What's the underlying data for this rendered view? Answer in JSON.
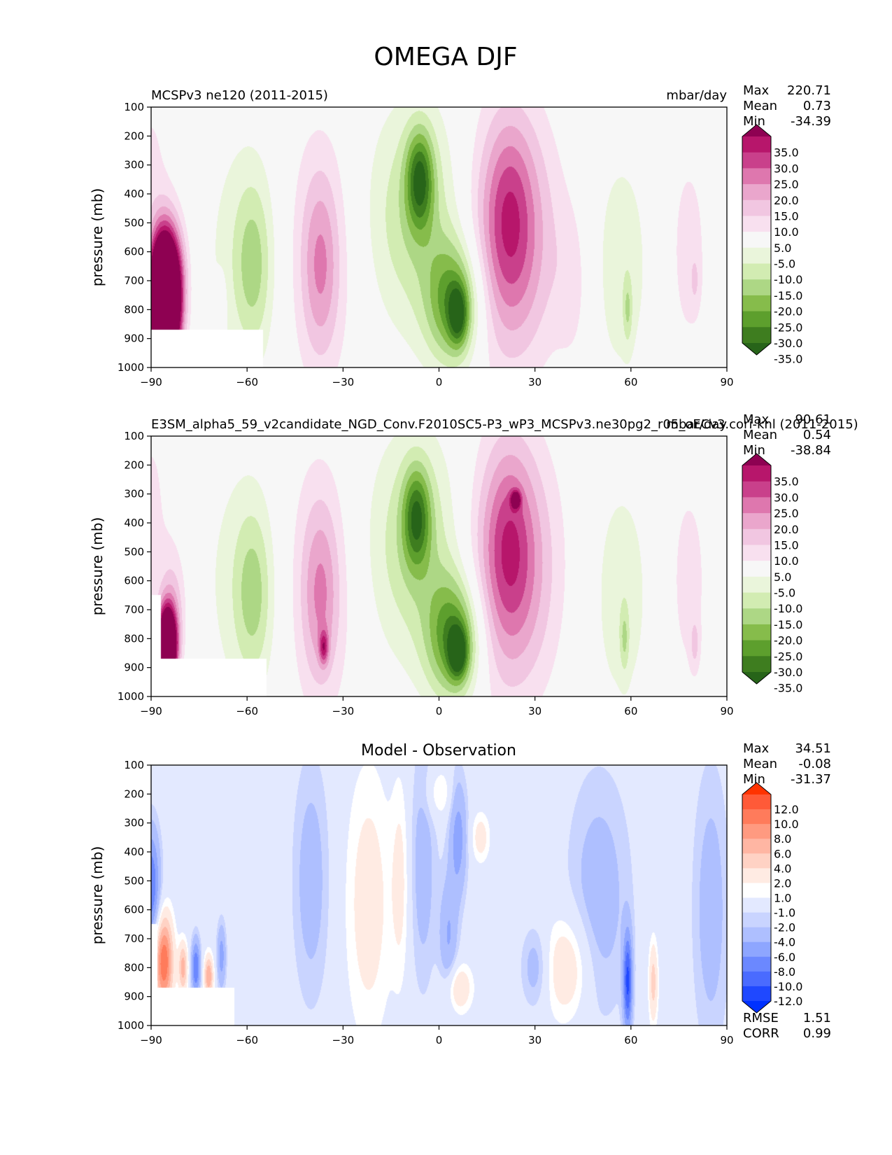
{
  "figure": {
    "title": "OMEGA DJF"
  },
  "chart_data": [
    {
      "type": "heatmap",
      "id": "test",
      "title": "",
      "left_label": "MCSPv3 ne120 (2011-2015)",
      "units": "mbar/day",
      "ylabel": "pressure (mb)",
      "xlabel": "",
      "x_ticks": [
        -90,
        -60,
        -30,
        0,
        30,
        60,
        90
      ],
      "y_ticks": [
        100,
        200,
        300,
        400,
        500,
        600,
        700,
        800,
        900,
        1000
      ],
      "xlim": [
        -90,
        90
      ],
      "ylim": [
        1000,
        100
      ],
      "stats": {
        "labels": [
          "Max",
          "Mean",
          "Min"
        ],
        "values": [
          "220.71",
          "0.73",
          "-34.39"
        ]
      },
      "colorbar": {
        "labels": [
          "35.0",
          "30.0",
          "25.0",
          "20.0",
          "15.0",
          "10.0",
          "5.0",
          "-5.0",
          "-10.0",
          "-15.0",
          "-20.0",
          "-25.0",
          "-30.0",
          "-35.0"
        ],
        "colors": [
          "#8e0152",
          "#b7166b",
          "#c9408b",
          "#de77ae",
          "#eaa6cc",
          "#f1c6e1",
          "#f8e0ef",
          "#f7f7f7",
          "#eaf5db",
          "#d2ecb2",
          "#add785",
          "#86bc4b",
          "#5d9f2d",
          "#3e7d1f",
          "#276419"
        ]
      },
      "features": [
        {
          "x": -86,
          "p": 780,
          "w": 3,
          "h": 150,
          "v": 120
        },
        {
          "x": -82,
          "p": 700,
          "w": 3,
          "h": 150,
          "v": 15
        },
        {
          "x": -90,
          "p": 350,
          "w": 5,
          "h": 300,
          "v": 6
        },
        {
          "x": -68,
          "p": 770,
          "w": 1,
          "h": 60,
          "v": 8
        },
        {
          "x": -60,
          "p": 600,
          "w": 10,
          "h": 320,
          "v": -8
        },
        {
          "x": -58,
          "p": 650,
          "w": 4,
          "h": 200,
          "v": -12
        },
        {
          "x": -38,
          "p": 600,
          "w": 10,
          "h": 340,
          "v": 9
        },
        {
          "x": -37,
          "p": 650,
          "w": 4,
          "h": 220,
          "v": 14
        },
        {
          "x": -7,
          "p": 480,
          "w": 12,
          "h": 280,
          "v": -15
        },
        {
          "x": -6,
          "p": 350,
          "w": 3,
          "h": 120,
          "v": -27
        },
        {
          "x": 5,
          "p": 780,
          "w": 6,
          "h": 150,
          "v": -28
        },
        {
          "x": 6,
          "p": 820,
          "w": 2,
          "h": 70,
          "v": -20
        },
        {
          "x": 22,
          "p": 550,
          "w": 10,
          "h": 310,
          "v": 24
        },
        {
          "x": 22,
          "p": 450,
          "w": 5,
          "h": 220,
          "v": 10
        },
        {
          "x": 42,
          "p": 720,
          "w": 4,
          "h": 200,
          "v": 6
        },
        {
          "x": 57,
          "p": 650,
          "w": 7,
          "h": 320,
          "v": -8
        },
        {
          "x": 59,
          "p": 800,
          "w": 1,
          "h": 80,
          "v": -10
        },
        {
          "x": 78,
          "p": 600,
          "w": 5,
          "h": 300,
          "v": 7
        },
        {
          "x": 80,
          "p": 700,
          "w": 1,
          "h": 60,
          "v": 6
        }
      ],
      "mask": [
        [
          -90,
          870,
          -55,
          1000
        ]
      ]
    },
    {
      "type": "heatmap",
      "id": "ref",
      "title": "",
      "left_label": "E3SM_alpha5_59_v2candidate_NGD_Conv.F2010SC5-P3_wP3_MCSPv3.ne30pg2_r05_oECv3.cori-knl (2011-2015)",
      "units": "mbar/day",
      "ylabel": "pressure (mb)",
      "xlabel": "",
      "x_ticks": [
        -90,
        -60,
        -30,
        0,
        30,
        60,
        90
      ],
      "y_ticks": [
        100,
        200,
        300,
        400,
        500,
        600,
        700,
        800,
        900,
        1000
      ],
      "xlim": [
        -90,
        90
      ],
      "ylim": [
        1000,
        100
      ],
      "stats": {
        "labels": [
          "Max",
          "Mean",
          "Min"
        ],
        "values": [
          "90.61",
          "0.54",
          "-38.84"
        ]
      },
      "colorbar": {
        "labels": [
          "35.0",
          "30.0",
          "25.0",
          "20.0",
          "15.0",
          "10.0",
          "5.0",
          "-5.0",
          "-10.0",
          "-15.0",
          "-20.0",
          "-25.0",
          "-30.0",
          "-35.0"
        ],
        "colors": [
          "#8e0152",
          "#b7166b",
          "#c9408b",
          "#de77ae",
          "#eaa6cc",
          "#f1c6e1",
          "#f8e0ef",
          "#f7f7f7",
          "#eaf5db",
          "#d2ecb2",
          "#add785",
          "#86bc4b",
          "#5d9f2d",
          "#3e7d1f",
          "#276419"
        ]
      },
      "features": [
        {
          "x": -85,
          "p": 830,
          "w": 2,
          "h": 90,
          "v": 80
        },
        {
          "x": -83,
          "p": 700,
          "w": 3,
          "h": 150,
          "v": 12
        },
        {
          "x": -90,
          "p": 350,
          "w": 5,
          "h": 300,
          "v": 6
        },
        {
          "x": -60,
          "p": 600,
          "w": 10,
          "h": 320,
          "v": -8
        },
        {
          "x": -58,
          "p": 650,
          "w": 4,
          "h": 200,
          "v": -12
        },
        {
          "x": -38,
          "p": 600,
          "w": 10,
          "h": 340,
          "v": 9
        },
        {
          "x": -37,
          "p": 650,
          "w": 4,
          "h": 220,
          "v": 14
        },
        {
          "x": -36,
          "p": 830,
          "w": 1,
          "h": 40,
          "v": 20
        },
        {
          "x": -7,
          "p": 480,
          "w": 12,
          "h": 280,
          "v": -15
        },
        {
          "x": -7,
          "p": 380,
          "w": 3,
          "h": 120,
          "v": -25
        },
        {
          "x": 5,
          "p": 800,
          "w": 6,
          "h": 150,
          "v": -30
        },
        {
          "x": 6,
          "p": 850,
          "w": 2,
          "h": 60,
          "v": -25
        },
        {
          "x": 22,
          "p": 550,
          "w": 10,
          "h": 310,
          "v": 24
        },
        {
          "x": 22,
          "p": 450,
          "w": 5,
          "h": 220,
          "v": 10
        },
        {
          "x": 24,
          "p": 320,
          "w": 1,
          "h": 20,
          "v": 30
        },
        {
          "x": 57,
          "p": 650,
          "w": 7,
          "h": 320,
          "v": -8
        },
        {
          "x": 58,
          "p": 800,
          "w": 1,
          "h": 80,
          "v": -10
        },
        {
          "x": 78,
          "p": 600,
          "w": 5,
          "h": 300,
          "v": 7
        },
        {
          "x": 80,
          "p": 820,
          "w": 1,
          "h": 60,
          "v": 8
        }
      ],
      "mask": [
        [
          -90,
          870,
          -54,
          1000
        ],
        [
          -90,
          650,
          -87,
          870
        ]
      ]
    },
    {
      "type": "heatmap",
      "id": "diff",
      "title": "Model - Observation",
      "left_label": "",
      "units": "",
      "ylabel": "pressure (mb)",
      "xlabel": "",
      "x_ticks": [
        -90,
        -60,
        -30,
        0,
        30,
        60,
        90
      ],
      "y_ticks": [
        100,
        200,
        300,
        400,
        500,
        600,
        700,
        800,
        900,
        1000
      ],
      "xlim": [
        -90,
        90
      ],
      "ylim": [
        1000,
        100
      ],
      "stats": {
        "labels": [
          "Max",
          "Mean",
          "Min"
        ],
        "values": [
          "34.51",
          "-0.08",
          "-31.37"
        ]
      },
      "extra_stats": {
        "labels": [
          "RMSE",
          "CORR"
        ],
        "values": [
          "1.51",
          "0.99"
        ]
      },
      "colorbar": {
        "labels": [
          "12.0",
          "10.0",
          "8.0",
          "6.0",
          "4.0",
          "2.0",
          "1.0",
          "-1.0",
          "-2.0",
          "-4.0",
          "-6.0",
          "-8.0",
          "-10.0",
          "-12.0"
        ],
        "colors": [
          "#ff3300",
          "#ff5a38",
          "#ff7b5b",
          "#ff9a80",
          "#ffb6a3",
          "#ffd2c4",
          "#ffebe3",
          "#ffffff",
          "#e3e9ff",
          "#c9d4ff",
          "#aebfff",
          "#8ea6ff",
          "#6b88ff",
          "#4a6bff",
          "#1f48ff",
          "#0031ff"
        ]
      },
      "features": [
        {
          "x": -90,
          "p": 520,
          "w": 2,
          "h": 140,
          "v": -8
        },
        {
          "x": -86,
          "p": 780,
          "w": 2,
          "h": 110,
          "v": 12
        },
        {
          "x": -80,
          "p": 800,
          "w": 1,
          "h": 60,
          "v": 7
        },
        {
          "x": -76,
          "p": 800,
          "w": 1,
          "h": 70,
          "v": -8
        },
        {
          "x": -72,
          "p": 830,
          "w": 1,
          "h": 50,
          "v": 8
        },
        {
          "x": -68,
          "p": 760,
          "w": 1,
          "h": 80,
          "v": -5
        },
        {
          "x": -40,
          "p": 500,
          "w": 4,
          "h": 300,
          "v": -3
        },
        {
          "x": -22,
          "p": 580,
          "w": 5,
          "h": 330,
          "v": 3
        },
        {
          "x": -12,
          "p": 500,
          "w": 2,
          "h": 250,
          "v": 2.5
        },
        {
          "x": -5,
          "p": 450,
          "w": 3,
          "h": 300,
          "v": -3
        },
        {
          "x": 0,
          "p": 200,
          "w": 3,
          "h": 60,
          "v": 2.5
        },
        {
          "x": 6,
          "p": 350,
          "w": 2,
          "h": 150,
          "v": -5
        },
        {
          "x": 3,
          "p": 700,
          "w": 2,
          "h": 150,
          "v": -4
        },
        {
          "x": 13,
          "p": 350,
          "w": 2,
          "h": 60,
          "v": 3
        },
        {
          "x": 6,
          "p": 870,
          "w": 3,
          "h": 60,
          "v": 4
        },
        {
          "x": 30,
          "p": 800,
          "w": 3,
          "h": 100,
          "v": -3
        },
        {
          "x": 40,
          "p": 800,
          "w": 5,
          "h": 130,
          "v": 4
        },
        {
          "x": 50,
          "p": 550,
          "w": 7,
          "h": 300,
          "v": -3
        },
        {
          "x": 59,
          "p": 850,
          "w": 1,
          "h": 120,
          "v": -10
        },
        {
          "x": 67,
          "p": 850,
          "w": 1,
          "h": 100,
          "v": 5
        },
        {
          "x": 85,
          "p": 600,
          "w": 4,
          "h": 350,
          "v": -3
        }
      ],
      "mask": [
        [
          -90,
          870,
          -64,
          1000
        ],
        [
          -90,
          650,
          -88,
          870
        ]
      ]
    }
  ]
}
